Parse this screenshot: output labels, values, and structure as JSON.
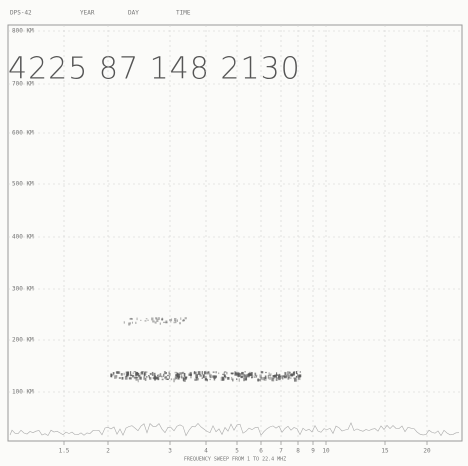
{
  "header": {
    "station": "DPS-42",
    "year": "YEAR",
    "day": "DAY",
    "time": "TIME"
  },
  "readout": "4225 87 148 2130",
  "height_labels": [
    "800 KM",
    "700 KM",
    "600 KM",
    "500 KM",
    "400 KM",
    "300 KM",
    "200 KM",
    "100 KM"
  ],
  "frequency_labels": [
    "1.5",
    "2",
    "3",
    "4",
    "5",
    "6",
    "7",
    "8",
    "9",
    "10",
    "15",
    "20"
  ],
  "footer": "FREQUENCY SWEEP FROM 1 TO 22.4 MHZ"
}
